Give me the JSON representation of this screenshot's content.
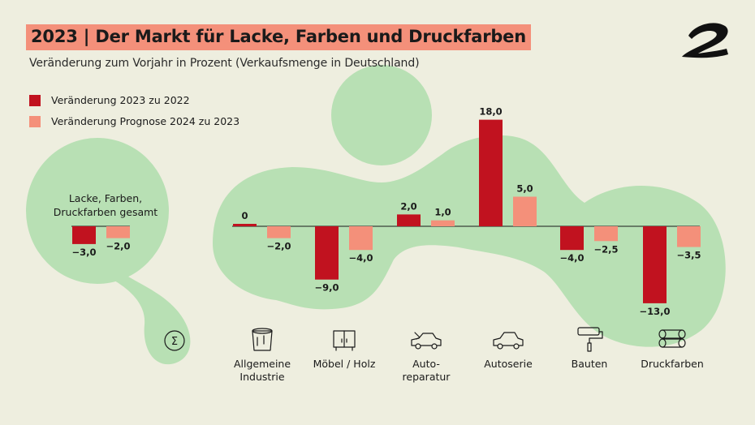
{
  "title": "2023 | Der Markt für Lacke, Farben und Druckfarben",
  "subtitle": "Veränderung zum Vorjahr in Prozent (Verkaufsmenge in Deutschland)",
  "colors": {
    "background": "#eeeedf",
    "blob": "#b8e0b4",
    "series_2023": "#c1121f",
    "series_2024": "#f4907a",
    "title_bg": "#f4907a"
  },
  "logo_icon": "brand-logo-icon",
  "chart_data": {
    "type": "bar",
    "title": "2023 | Der Markt für Lacke, Farben und Druckfarben",
    "ylabel": "Veränderung zum Vorjahr in Prozent",
    "xlabel": "",
    "ylim": [
      -13,
      18
    ],
    "legend_position": "top-left",
    "summary": {
      "label_line1": "Lacke, Farben,",
      "label_line2": "Druckfarben gesamt",
      "icon": "sigma-icon",
      "values": [
        -3.0,
        -2.0
      ],
      "value_labels": [
        "−3,0",
        "−2,0"
      ]
    },
    "categories": [
      {
        "label_line1": "Allgemeine",
        "label_line2": "Industrie",
        "icon": "paint-bucket-icon"
      },
      {
        "label_line1": "Möbel / Holz",
        "label_line2": "",
        "icon": "cabinet-icon"
      },
      {
        "label_line1": "Auto-",
        "label_line2": "reparatur",
        "icon": "damaged-car-icon"
      },
      {
        "label_line1": "Autoserie",
        "label_line2": "",
        "icon": "car-icon"
      },
      {
        "label_line1": "Bauten",
        "label_line2": "",
        "icon": "paint-roller-icon"
      },
      {
        "label_line1": "Druckfarben",
        "label_line2": "",
        "icon": "print-rolls-icon"
      }
    ],
    "series": [
      {
        "name": "Veränderung 2023 zu 2022",
        "color": "#c1121f",
        "values": [
          0,
          -9.0,
          2.0,
          18.0,
          -4.0,
          -13.0
        ],
        "labels": [
          "0",
          "−9,0",
          "2,0",
          "18,0",
          "−4,0",
          "−13,0"
        ]
      },
      {
        "name": "Veränderung Prognose 2024 zu 2023",
        "color": "#f4907a",
        "values": [
          -2.0,
          -4.0,
          1.0,
          5.0,
          -2.5,
          -3.5
        ],
        "labels": [
          "−2,0",
          "−4,0",
          "1,0",
          "5,0",
          "−2,5",
          "−3,5"
        ]
      }
    ]
  }
}
